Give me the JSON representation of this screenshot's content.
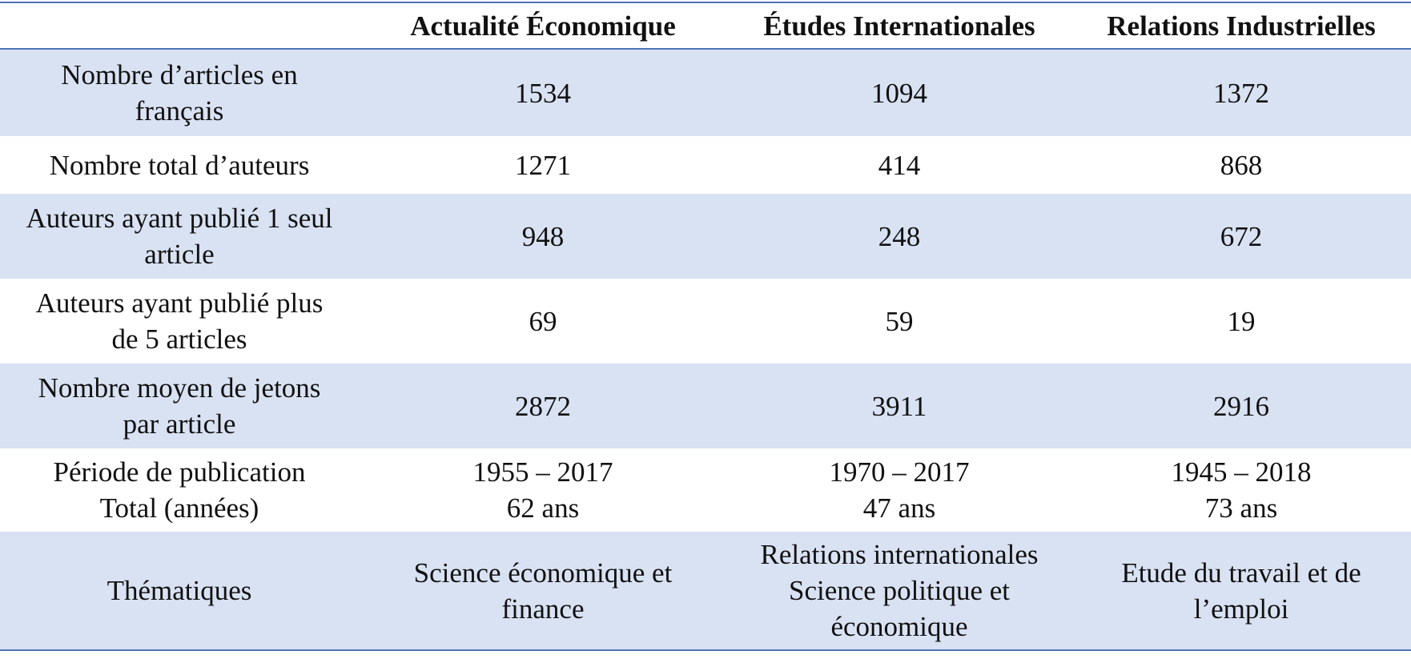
{
  "table": {
    "header": [
      "",
      "Actualité Économique",
      "Études Internationales",
      "Relations Industrielles"
    ],
    "rows": [
      {
        "label": [
          "Nombre d’articles en",
          "français"
        ],
        "values": [
          [
            "1534"
          ],
          [
            "1094"
          ],
          [
            "1372"
          ]
        ]
      },
      {
        "label": [
          "Nombre total d’auteurs"
        ],
        "values": [
          [
            "1271"
          ],
          [
            "414"
          ],
          [
            "868"
          ]
        ]
      },
      {
        "label": [
          "Auteurs ayant publié 1 seul",
          "article"
        ],
        "values": [
          [
            "948"
          ],
          [
            "248"
          ],
          [
            "672"
          ]
        ]
      },
      {
        "label": [
          "Auteurs ayant publié plus",
          "de 5 articles"
        ],
        "values": [
          [
            "69"
          ],
          [
            "59"
          ],
          [
            "19"
          ]
        ]
      },
      {
        "label": [
          "Nombre moyen de jetons",
          "par article"
        ],
        "values": [
          [
            "2872"
          ],
          [
            "3911"
          ],
          [
            "2916"
          ]
        ]
      },
      {
        "label": [
          "Période de publication",
          "Total (années)"
        ],
        "values": [
          [
            "1955 – 2017",
            "62 ans"
          ],
          [
            "1970 – 2017",
            "47 ans"
          ],
          [
            "1945 – 2018",
            "73 ans"
          ]
        ]
      },
      {
        "label": [
          "Thématiques"
        ],
        "values": [
          [
            "Science économique et",
            "finance"
          ],
          [
            "Relations internationales",
            "Science politique et",
            "économique"
          ],
          [
            "Etude du travail et de",
            "l’emploi"
          ]
        ]
      }
    ]
  }
}
